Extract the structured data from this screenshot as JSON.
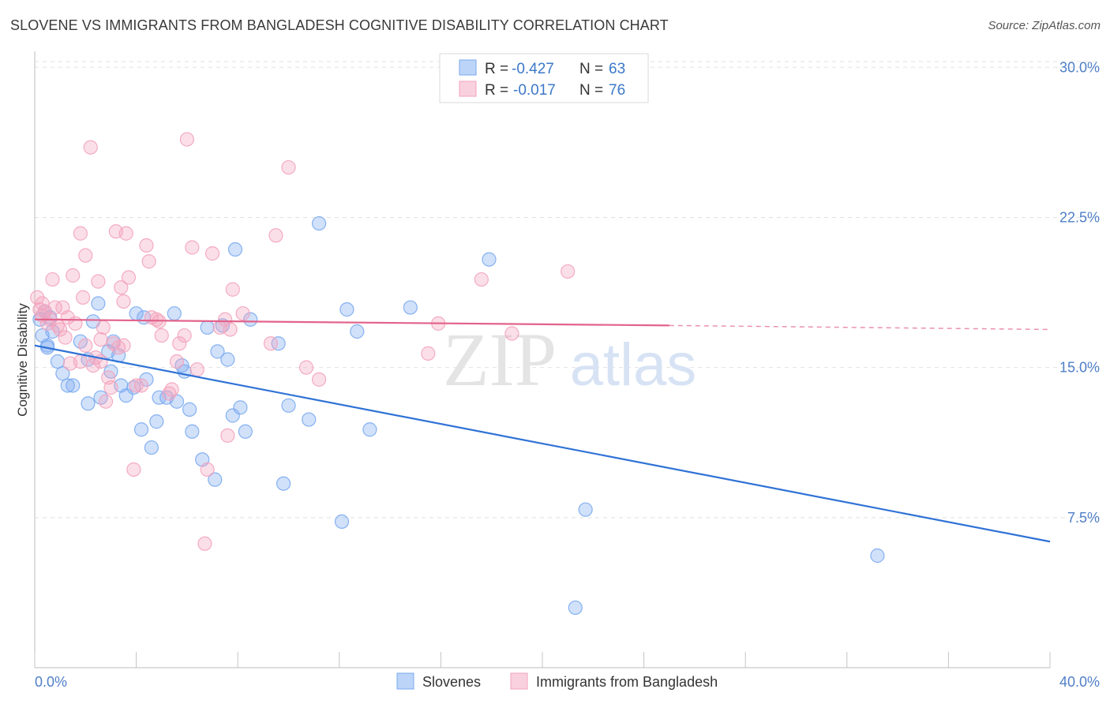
{
  "title": "SLOVENE VS IMMIGRANTS FROM BANGLADESH COGNITIVE DISABILITY CORRELATION CHART",
  "source": "Source: ZipAtlas.com",
  "watermark": {
    "zip": "ZIP",
    "atlas": "atlas"
  },
  "chart_data": {
    "type": "scatter",
    "ylabel": "Cognitive Disability",
    "xlim": [
      0,
      40
    ],
    "ylim": [
      0,
      30.8
    ],
    "x_tick_labels": [
      "0.0%",
      "40.0%"
    ],
    "y_ticks": [
      7.5,
      15.0,
      22.5,
      30.0
    ],
    "y_tick_labels": [
      "7.5%",
      "15.0%",
      "22.5%",
      "30.0%"
    ],
    "grid": true,
    "legend_position": "top-center",
    "series": [
      {
        "name": "Slovenes",
        "color": "#7aaaf0",
        "line_color": "#2f72d6",
        "r_label": "R =",
        "r_value": "-0.427",
        "n_label": "N =",
        "n_value": "63",
        "trend": {
          "x0": 0.0,
          "y0": 16.1,
          "x1": 40.0,
          "y1": 6.3
        },
        "points": [
          [
            0.2,
            17.4
          ],
          [
            0.3,
            16.6
          ],
          [
            0.4,
            17.8
          ],
          [
            0.5,
            16.1
          ],
          [
            0.6,
            17.5
          ],
          [
            0.7,
            16.8
          ],
          [
            0.9,
            15.3
          ],
          [
            1.1,
            14.7
          ],
          [
            1.3,
            14.1
          ],
          [
            1.5,
            14.1
          ],
          [
            1.8,
            16.3
          ],
          [
            2.1,
            15.4
          ],
          [
            2.1,
            13.2
          ],
          [
            2.3,
            17.3
          ],
          [
            2.5,
            18.2
          ],
          [
            2.6,
            13.5
          ],
          [
            2.9,
            15.8
          ],
          [
            3.0,
            14.8
          ],
          [
            3.1,
            16.3
          ],
          [
            3.3,
            15.6
          ],
          [
            3.4,
            14.1
          ],
          [
            3.6,
            13.6
          ],
          [
            3.9,
            14.0
          ],
          [
            4.0,
            17.7
          ],
          [
            4.2,
            11.9
          ],
          [
            4.3,
            17.5
          ],
          [
            4.4,
            14.4
          ],
          [
            4.6,
            11.0
          ],
          [
            4.8,
            12.3
          ],
          [
            4.9,
            13.5
          ],
          [
            5.2,
            13.5
          ],
          [
            5.5,
            17.7
          ],
          [
            5.6,
            13.3
          ],
          [
            5.8,
            15.1
          ],
          [
            5.9,
            14.8
          ],
          [
            6.1,
            12.9
          ],
          [
            6.2,
            11.8
          ],
          [
            6.6,
            10.4
          ],
          [
            6.8,
            17.0
          ],
          [
            7.1,
            9.4
          ],
          [
            7.2,
            15.8
          ],
          [
            7.4,
            17.1
          ],
          [
            7.6,
            15.4
          ],
          [
            7.8,
            12.6
          ],
          [
            7.9,
            20.9
          ],
          [
            8.1,
            13.0
          ],
          [
            8.3,
            11.8
          ],
          [
            8.5,
            17.4
          ],
          [
            9.6,
            16.2
          ],
          [
            9.8,
            9.2
          ],
          [
            10.0,
            13.1
          ],
          [
            10.8,
            12.4
          ],
          [
            11.2,
            22.2
          ],
          [
            12.1,
            7.3
          ],
          [
            12.3,
            17.9
          ],
          [
            12.7,
            16.8
          ],
          [
            13.2,
            11.9
          ],
          [
            14.8,
            18.0
          ],
          [
            17.9,
            20.4
          ],
          [
            21.3,
            3.0
          ],
          [
            21.7,
            7.9
          ],
          [
            33.2,
            5.6
          ],
          [
            0.5,
            16.0
          ]
        ]
      },
      {
        "name": "Immigrants from Bangladesh",
        "color": "#f3a3bd",
        "line_color": "#e2638b",
        "r_label": "R =",
        "r_value": "-0.017",
        "n_label": "N =",
        "n_value": "76",
        "trend": {
          "x0": 0.0,
          "y0": 17.4,
          "x1": 25.0,
          "y1": 17.1
        },
        "trend_dash": {
          "x0": 25.0,
          "y0": 17.1,
          "x1": 40.0,
          "y1": 16.9
        },
        "points": [
          [
            0.1,
            18.5
          ],
          [
            0.2,
            17.9
          ],
          [
            0.3,
            18.2
          ],
          [
            0.4,
            17.8
          ],
          [
            0.5,
            17.2
          ],
          [
            0.6,
            17.4
          ],
          [
            0.7,
            19.4
          ],
          [
            0.8,
            18.0
          ],
          [
            0.9,
            17.1
          ],
          [
            1.0,
            16.9
          ],
          [
            1.1,
            18.0
          ],
          [
            1.3,
            17.5
          ],
          [
            1.4,
            15.2
          ],
          [
            1.5,
            19.6
          ],
          [
            1.6,
            17.2
          ],
          [
            1.8,
            15.3
          ],
          [
            1.8,
            21.7
          ],
          [
            1.9,
            18.5
          ],
          [
            2.0,
            20.6
          ],
          [
            2.2,
            26.0
          ],
          [
            2.4,
            15.5
          ],
          [
            2.5,
            19.3
          ],
          [
            2.6,
            16.4
          ],
          [
            2.6,
            15.3
          ],
          [
            2.7,
            17.0
          ],
          [
            2.8,
            13.3
          ],
          [
            2.9,
            14.5
          ],
          [
            3.0,
            14.0
          ],
          [
            3.1,
            16.2
          ],
          [
            3.2,
            21.8
          ],
          [
            3.4,
            19.0
          ],
          [
            3.5,
            16.1
          ],
          [
            3.5,
            18.3
          ],
          [
            3.6,
            21.7
          ],
          [
            3.7,
            19.5
          ],
          [
            3.9,
            9.9
          ],
          [
            4.0,
            14.1
          ],
          [
            4.2,
            14.1
          ],
          [
            4.4,
            21.1
          ],
          [
            4.5,
            20.3
          ],
          [
            4.6,
            17.5
          ],
          [
            4.8,
            17.4
          ],
          [
            5.0,
            16.6
          ],
          [
            5.3,
            13.7
          ],
          [
            5.4,
            13.9
          ],
          [
            5.6,
            15.3
          ],
          [
            5.9,
            16.6
          ],
          [
            6.0,
            26.4
          ],
          [
            6.2,
            21.0
          ],
          [
            6.4,
            14.9
          ],
          [
            6.7,
            6.2
          ],
          [
            6.8,
            9.9
          ],
          [
            7.0,
            20.7
          ],
          [
            7.5,
            17.4
          ],
          [
            7.6,
            11.6
          ],
          [
            7.7,
            16.9
          ],
          [
            7.8,
            18.9
          ],
          [
            8.2,
            17.7
          ],
          [
            9.3,
            16.2
          ],
          [
            9.5,
            21.6
          ],
          [
            10.0,
            25.0
          ],
          [
            10.7,
            15.0
          ],
          [
            11.2,
            14.4
          ],
          [
            15.5,
            15.7
          ],
          [
            15.9,
            17.2
          ],
          [
            17.6,
            19.4
          ],
          [
            18.8,
            16.7
          ],
          [
            21.0,
            19.8
          ],
          [
            0.3,
            17.6
          ],
          [
            1.2,
            16.5
          ],
          [
            2.3,
            15.1
          ],
          [
            3.3,
            16.0
          ],
          [
            4.9,
            17.3
          ],
          [
            5.7,
            16.2
          ],
          [
            7.3,
            17.0
          ],
          [
            2.0,
            16.1
          ]
        ]
      }
    ]
  }
}
